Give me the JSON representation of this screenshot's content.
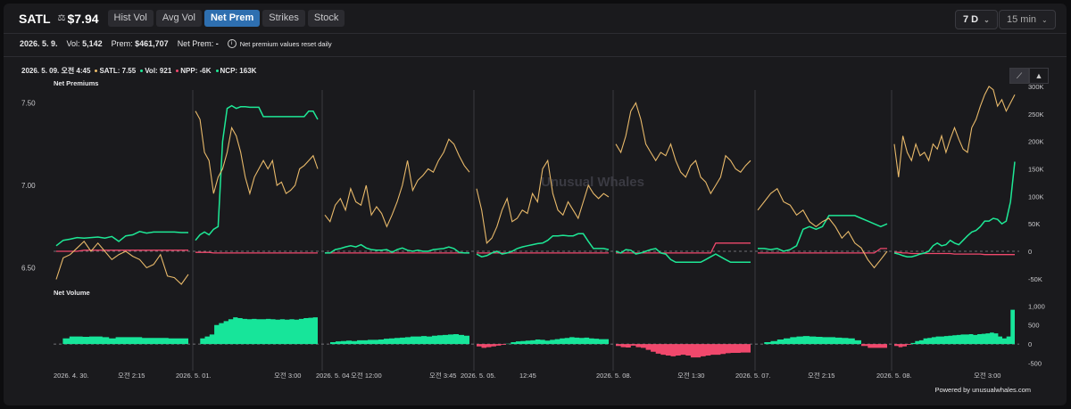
{
  "header": {
    "ticker": "SATL",
    "price": "$7.94",
    "tabs": [
      {
        "label": "Hist Vol",
        "active": false
      },
      {
        "label": "Avg Vol",
        "active": false
      },
      {
        "label": "Net Prem",
        "active": true
      },
      {
        "label": "Strikes",
        "active": false
      },
      {
        "label": "Stock",
        "active": false
      }
    ],
    "range_select": "7 D",
    "interval_select": "15 min"
  },
  "summary": {
    "date": "2026. 5. 9.",
    "vol_label": "Vol:",
    "vol": "5,142",
    "prem_label": "Prem:",
    "prem": "$461,707",
    "net_prem_label": "Net Prem:",
    "net_prem": "-",
    "note": "Net premium values reset daily"
  },
  "legend": {
    "datetime": "2026. 5. 09. 오전 4:45",
    "satl": "SATL: 7.55",
    "vol": "Vol: 921",
    "npp": "NPP: -6K",
    "ncp": "NCP: 163K"
  },
  "colors": {
    "price": "#e8b96a",
    "ncp": "#1ee896",
    "npp": "#f0486c",
    "volume_pos": "#17e59a",
    "volume_neg": "#f0486c",
    "accent": "#2e6fb0"
  },
  "watermark": "Unusual Whales",
  "footer": "Powered by unusualwhales.com",
  "chart_data": [
    {
      "type": "line",
      "title": "Net Premiums",
      "left_axis": {
        "ticks": [
          "7.50",
          "7.00",
          "6.50"
        ],
        "values": [
          7.5,
          7.0,
          6.5
        ]
      },
      "right_axis": {
        "ticks": [
          "300K",
          "250K",
          "200K",
          "150K",
          "100K",
          "50K",
          "0",
          "-50K"
        ],
        "values": [
          300000,
          250000,
          200000,
          150000,
          100000,
          50000,
          0,
          -50000
        ]
      },
      "sessions": [
        {
          "price": [
            6.43,
            6.56,
            6.58,
            6.62,
            6.66,
            6.6,
            6.65,
            6.6,
            6.55,
            6.58,
            6.6,
            6.57,
            6.55,
            6.5,
            6.52,
            6.58,
            6.45,
            6.44,
            6.4,
            6.46
          ],
          "ncp": [
            10000,
            20000,
            22000,
            25000,
            24000,
            25000,
            26000,
            24000,
            27000,
            18000,
            28000,
            30000,
            36000,
            33000,
            35000,
            35000,
            35000,
            35000,
            34000,
            34000
          ],
          "npp": [
            0,
            0,
            0,
            0,
            2000,
            2000,
            2000,
            2000,
            2000,
            2000,
            2000,
            2000,
            2000,
            2000,
            2000,
            2000,
            2000,
            2000,
            2000,
            2000
          ]
        },
        {
          "price": [
            7.45,
            7.4,
            7.2,
            7.15,
            6.95,
            7.05,
            7.1,
            7.2,
            7.35,
            7.3,
            7.2,
            7.05,
            6.95,
            7.05,
            7.1,
            7.15,
            7.1,
            7.15,
            7.0,
            7.02,
            6.95,
            6.97,
            7.0,
            7.1,
            7.12,
            7.15,
            7.18,
            7.1
          ],
          "ncp": [
            20000,
            30000,
            35000,
            30000,
            40000,
            45000,
            200000,
            260000,
            265000,
            260000,
            263000,
            263000,
            262000,
            262000,
            262000,
            245000,
            245000,
            245000,
            245000,
            245000,
            245000,
            245000,
            245000,
            245000,
            245000,
            255000,
            255000,
            240000
          ],
          "npp": [
            -2000,
            -2000,
            -2000,
            -2000,
            -3000,
            -3000,
            -3000,
            -3000,
            -3000,
            -3000,
            -3000,
            -3000,
            -3000,
            -3000,
            -3000,
            -3000,
            -3000,
            -3000,
            -3000,
            -3000,
            -3000,
            -3000,
            -3000,
            -3000,
            -3000,
            -3000,
            -3000,
            -3000
          ]
        },
        {
          "price": [
            6.82,
            6.78,
            6.88,
            6.92,
            6.85,
            6.98,
            6.9,
            6.88,
            7.0,
            6.82,
            6.87,
            6.83,
            6.75,
            6.82,
            6.9,
            7.0,
            7.15,
            6.97,
            7.03,
            7.06,
            7.1,
            7.08,
            7.15,
            7.2,
            7.28,
            7.25,
            7.18,
            7.12,
            7.08
          ],
          "ncp": [
            -3000,
            -3000,
            3000,
            5000,
            8000,
            10000,
            8000,
            12000,
            6000,
            3000,
            2000,
            2000,
            3000,
            -2000,
            3000,
            6000,
            2000,
            0,
            2000,
            0,
            0,
            3000,
            4000,
            5000,
            8000,
            5000,
            -2000,
            -3000,
            -3000
          ],
          "npp": [
            -3000,
            -3000,
            -3000,
            -3000,
            -3000,
            -3000,
            -3000,
            -3000,
            -3000,
            -3000,
            -3000,
            -3000,
            -3000,
            -3000,
            -3000,
            -3000,
            -3000,
            -3000,
            -3000,
            -3000,
            -3000,
            -3000,
            -3000,
            -3000,
            -3000,
            -3000,
            -3000,
            -3000,
            -3000
          ]
        },
        {
          "price": [
            6.98,
            6.85,
            6.65,
            6.68,
            6.75,
            6.85,
            6.92,
            6.78,
            6.8,
            6.85,
            6.83,
            6.95,
            6.9,
            7.1,
            7.15,
            6.95,
            6.85,
            6.82,
            6.9,
            6.85,
            6.8,
            6.9,
            7.0,
            6.95,
            6.92,
            6.95,
            6.93
          ],
          "ncp": [
            -5000,
            -10000,
            -8000,
            -3000,
            0,
            -5000,
            -3000,
            0,
            5000,
            8000,
            10000,
            12000,
            14000,
            15000,
            20000,
            28000,
            28000,
            29000,
            28000,
            28000,
            32000,
            32000,
            18000,
            5000,
            5000,
            5000,
            3000
          ],
          "npp": [
            -3000,
            -3000,
            -3000,
            -3000,
            -3000,
            -3000,
            -3000,
            -3000,
            -3000,
            -3000,
            -3000,
            -3000,
            -3000,
            -3000,
            -3000,
            -3000,
            -3000,
            -3000,
            -3000,
            -3000,
            -3000,
            -3000,
            -3000,
            -3000,
            -3000,
            -3000,
            -3000
          ]
        },
        {
          "price": [
            7.25,
            7.2,
            7.3,
            7.45,
            7.5,
            7.4,
            7.25,
            7.2,
            7.15,
            7.2,
            7.18,
            7.25,
            7.15,
            7.08,
            7.05,
            7.12,
            7.15,
            7.05,
            7.02,
            6.95,
            7.0,
            7.05,
            7.18,
            7.15,
            7.1,
            7.08,
            7.12,
            7.15
          ],
          "ncp": [
            0,
            -3000,
            3000,
            2000,
            -5000,
            -3000,
            0,
            3000,
            5000,
            -3000,
            -5000,
            -15000,
            -20000,
            -20000,
            -20000,
            -20000,
            -20000,
            -20000,
            -15000,
            -10000,
            -5000,
            -10000,
            -15000,
            -20000,
            -20000,
            -20000,
            -20000,
            -20000
          ],
          "npp": [
            -3000,
            -3000,
            -3000,
            -3000,
            -3000,
            -3000,
            -3000,
            -3000,
            -3000,
            -3000,
            -3000,
            -3000,
            -3000,
            -3000,
            -3000,
            -3000,
            -3000,
            -3000,
            -3000,
            -3000,
            15000,
            15000,
            15000,
            15000,
            15000,
            15000,
            15000,
            15000
          ]
        },
        {
          "price": [
            6.85,
            6.9,
            6.95,
            6.98,
            6.9,
            6.88,
            6.82,
            6.85,
            6.78,
            6.75,
            6.78,
            6.8,
            6.75,
            6.68,
            6.72,
            6.65,
            6.62,
            6.55,
            6.5,
            6.55,
            6.6
          ],
          "ncp": [
            5000,
            5000,
            3000,
            5000,
            0,
            3000,
            10000,
            40000,
            45000,
            40000,
            45000,
            65000,
            65000,
            65000,
            65000,
            65000,
            60000,
            55000,
            50000,
            45000,
            50000
          ],
          "npp": [
            -3000,
            -3000,
            -3000,
            -3000,
            -3000,
            -3000,
            -3000,
            -3000,
            -3000,
            -3000,
            -3000,
            -3000,
            -3000,
            -3000,
            -3000,
            -3000,
            -3000,
            -3000,
            -3000,
            5000,
            5000
          ]
        },
        {
          "price": [
            7.25,
            7.05,
            7.3,
            7.2,
            7.15,
            7.25,
            7.18,
            7.2,
            7.15,
            7.25,
            7.22,
            7.3,
            7.2,
            7.28,
            7.35,
            7.28,
            7.22,
            7.2,
            7.35,
            7.4,
            7.48,
            7.55,
            7.6,
            7.58,
            7.48,
            7.52,
            7.45,
            7.5,
            7.55
          ],
          "ncp": [
            -3000,
            -5000,
            -8000,
            -10000,
            -10000,
            -8000,
            -5000,
            -3000,
            0,
            10000,
            15000,
            10000,
            12000,
            20000,
            15000,
            12000,
            20000,
            28000,
            35000,
            38000,
            45000,
            55000,
            55000,
            60000,
            58000,
            50000,
            55000,
            90000,
            163000
          ],
          "npp": [
            -2000,
            -2000,
            -3000,
            -3000,
            -4000,
            -4000,
            -4000,
            -4000,
            -4000,
            -4000,
            -4000,
            -4000,
            -4000,
            -4000,
            -5000,
            -5000,
            -5000,
            -5000,
            -5000,
            -5000,
            -5000,
            -6000,
            -6000,
            -6000,
            -6000,
            -6000,
            -6000,
            -6000,
            -6000
          ]
        }
      ]
    },
    {
      "type": "area",
      "title": "Net Volume",
      "right_axis": {
        "ticks": [
          "1,000",
          "500",
          "0",
          "-500"
        ],
        "values": [
          1000,
          500,
          0,
          -500
        ]
      },
      "x_tick_labels": [
        "2026. 4. 30.",
        "오전 2:15",
        "2026. 5. 01.",
        "오전 3:00",
        "2026. 5. 04",
        "오전 12:00",
        "오전 3:45",
        "2026. 5. 05.",
        "12:45",
        "2026. 5. 08.",
        "오전 1:30",
        "2026. 5. 07.",
        "오전 2:15",
        "2026. 5. 08.",
        "오전 3:00"
      ],
      "sessions": [
        [
          0,
          150,
          200,
          200,
          190,
          200,
          200,
          180,
          150,
          180,
          180,
          180,
          180,
          160,
          160,
          160,
          160,
          150,
          150,
          150
        ],
        [
          0,
          150,
          200,
          250,
          500,
          550,
          600,
          650,
          700,
          680,
          660,
          650,
          660,
          650,
          650,
          660,
          650,
          640,
          650,
          640,
          650,
          640,
          660,
          680,
          690,
          700
        ],
        [
          0,
          50,
          70,
          80,
          90,
          80,
          100,
          100,
          110,
          110,
          120,
          140,
          150,
          160,
          170,
          180,
          200,
          200,
          210,
          200,
          220,
          230,
          240,
          250,
          260,
          240,
          220
        ],
        [
          -60,
          -100,
          -80,
          -60,
          -40,
          -20,
          10,
          50,
          70,
          80,
          90,
          100,
          120,
          110,
          90,
          110,
          130,
          150,
          160,
          180,
          170,
          160,
          170,
          150,
          140,
          130,
          130
        ],
        [
          -50,
          -80,
          -90,
          -40,
          -80,
          -100,
          -150,
          -200,
          -250,
          -280,
          -300,
          -320,
          -300,
          -280,
          -300,
          -350,
          -350,
          -320,
          -300,
          -280,
          -280,
          -260,
          -240,
          -230,
          -230,
          -220,
          -220
        ],
        [
          0,
          50,
          80,
          120,
          150,
          180,
          200,
          210,
          200,
          190,
          180,
          180,
          170,
          160,
          150,
          100,
          -50,
          -100,
          -100,
          -100
        ],
        [
          -50,
          -80,
          -60,
          -20,
          30,
          80,
          100,
          150,
          160,
          180,
          200,
          200,
          210,
          220,
          230,
          240,
          250,
          250,
          260,
          240,
          260,
          270,
          280,
          300,
          280,
          200,
          150,
          200,
          900
        ]
      ]
    }
  ]
}
